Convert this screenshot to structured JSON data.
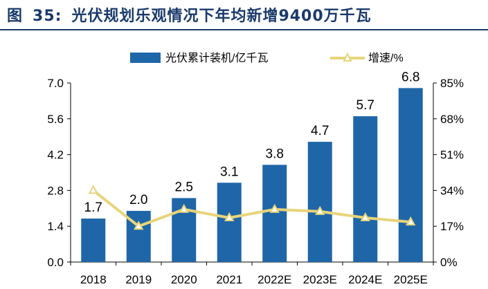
{
  "figure": {
    "label": "图",
    "number": "35:"
  },
  "chart_data": {
    "type": "bar",
    "title": "光伏规划乐观情况下年均新增9400万千瓦",
    "categories": [
      "2018",
      "2019",
      "2020",
      "2021",
      "2022E",
      "2023E",
      "2024E",
      "2025E"
    ],
    "series": [
      {
        "name": "光伏累计装机/亿千瓦",
        "kind": "bar",
        "axis": "left",
        "color": "#1f66a8",
        "values": [
          1.7,
          2.0,
          2.5,
          3.1,
          3.8,
          4.7,
          5.7,
          6.8
        ],
        "labels": [
          "1.7",
          "2.0",
          "2.5",
          "3.1",
          "3.8",
          "4.7",
          "5.7",
          "6.8"
        ]
      },
      {
        "name": "增速/%",
        "kind": "line",
        "axis": "right",
        "color": "#e8d47a",
        "values": [
          34,
          17,
          25,
          21,
          25,
          24,
          21,
          19
        ]
      }
    ],
    "left_axis": {
      "min": 0,
      "max": 7.0,
      "ticks": [
        "0.0",
        "1.4",
        "2.8",
        "4.2",
        "5.6",
        "7.0"
      ]
    },
    "right_axis": {
      "min": 0,
      "max": 85,
      "ticks": [
        "0%",
        "17%",
        "34%",
        "51%",
        "68%",
        "85%"
      ]
    },
    "legend": "top-center",
    "grid": false
  }
}
